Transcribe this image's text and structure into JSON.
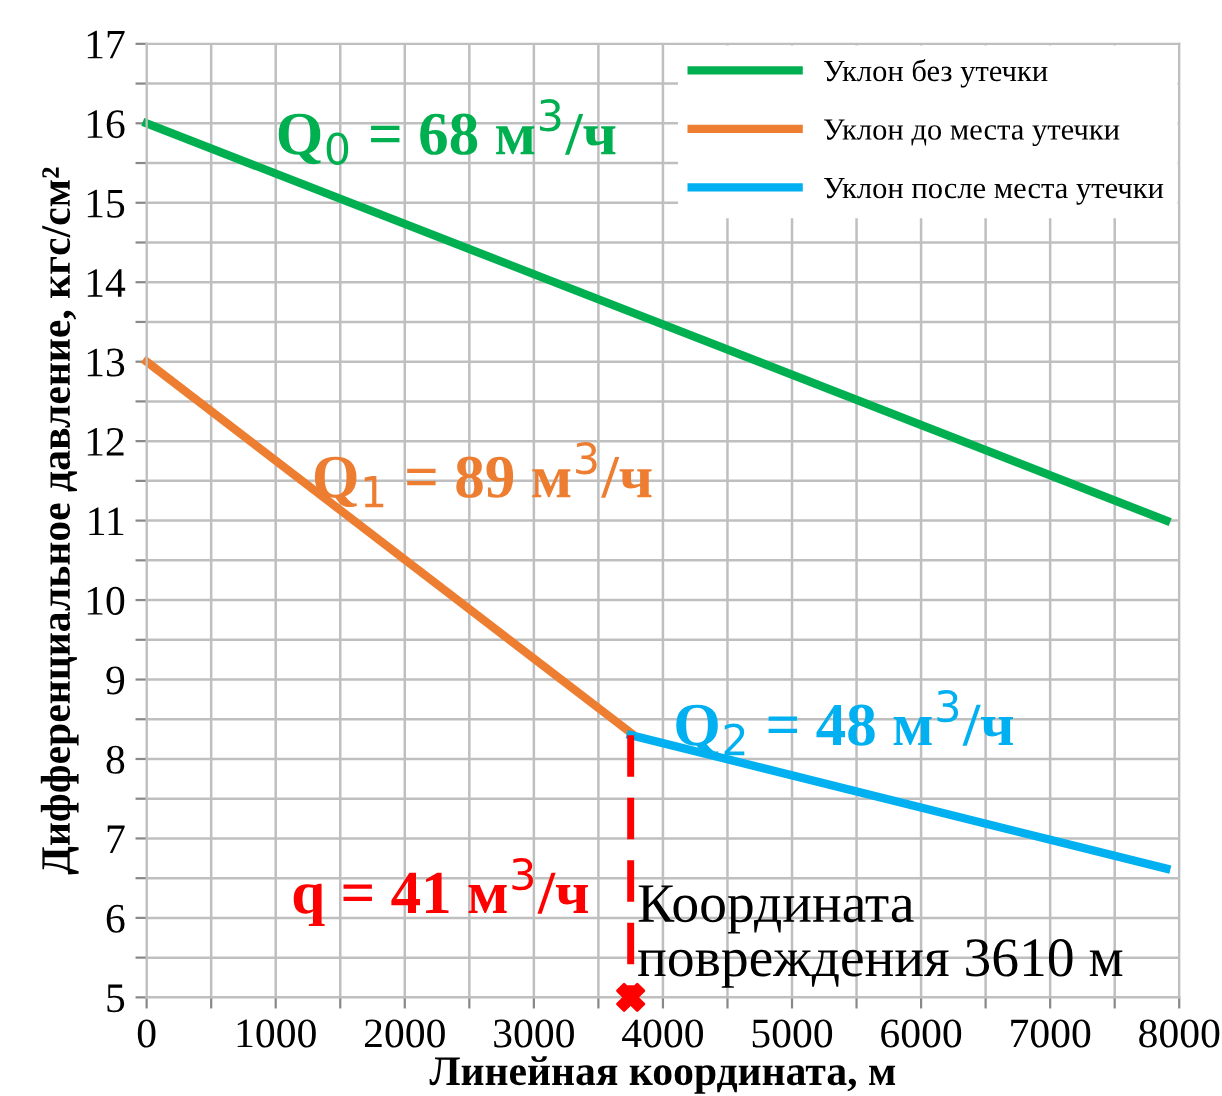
{
  "chart_data": {
    "type": "line",
    "xlabel": "Линейная координата, м",
    "ylabel": "Дифференциальное давление, кгс/см²",
    "xlim": [
      0,
      8000
    ],
    "ylim": [
      5,
      17
    ],
    "xticks": [
      0,
      {
        "value": 500,
        "label": null
      },
      1000,
      {
        "value": 1500,
        "label": null
      },
      2000,
      {
        "value": 2500,
        "label": null
      },
      3000,
      {
        "value": 3500,
        "label": null
      },
      4000,
      {
        "value": 4500,
        "label": null
      },
      5000,
      {
        "value": 5500,
        "label": null
      },
      6000,
      {
        "value": 6500,
        "label": null
      },
      7000,
      {
        "value": 7500,
        "label": null
      },
      8000
    ],
    "yticks": [
      5,
      {
        "value": 5.5,
        "label": null
      },
      6,
      {
        "value": 6.5,
        "label": null
      },
      7,
      {
        "value": 7.5,
        "label": null
      },
      8,
      {
        "value": 8.5,
        "label": null
      },
      9,
      {
        "value": 9.5,
        "label": null
      },
      10,
      {
        "value": 10.5,
        "label": null
      },
      11,
      {
        "value": 11.5,
        "label": null
      },
      12,
      {
        "value": 12.5,
        "label": null
      },
      13,
      {
        "value": 13.5,
        "label": null
      },
      14,
      {
        "value": 14.5,
        "label": null
      },
      15,
      {
        "value": 15.5,
        "label": null
      },
      16,
      {
        "value": 16.5,
        "label": null
      },
      17
    ],
    "grid": true,
    "legend": "top right",
    "series": [
      {
        "name": "Уклон без утечки",
        "color": "#00b050",
        "x": [
          0,
          7900
        ],
        "values": [
          16,
          11
        ]
      },
      {
        "name": "Уклон до места утечки",
        "color": "#ed7d31",
        "x": [
          0,
          3750
        ],
        "values": [
          13,
          8.33
        ]
      },
      {
        "name": "Уклон после места утечки",
        "color": "#00b0f0",
        "x": [
          3750,
          7900
        ],
        "values": [
          8.3,
          6.62
        ]
      },
      {
        "color": "#ff0000",
        "x": [
          3750,
          3750
        ],
        "values": [
          8.3,
          5
        ],
        "line_style": "dashed"
      },
      {
        "type": "scatter",
        "color": "#ff0000",
        "x": [
          3750
        ],
        "values": [
          5
        ],
        "marker": "cross"
      }
    ],
    "annotations": [
      "Q$_{0}$ = 68 м$^{3}$/ч",
      "Q$_{1}$ = 89 м$^{3}$/ч",
      "Q$_{2}$ = 48 м$^{3}$/ч",
      "q = 41 м$^{3}$/ч",
      "Координата\nповреждения 3610 м"
    ]
  }
}
